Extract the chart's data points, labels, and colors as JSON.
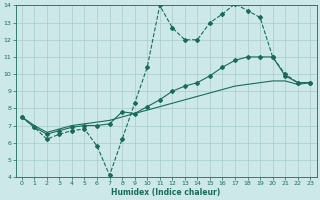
{
  "xlabel": "Humidex (Indice chaleur)",
  "bg_color": "#cce8e8",
  "grid_color": "#aacccc",
  "line_color": "#1a6b5a",
  "xlim": [
    -0.5,
    23.5
  ],
  "ylim": [
    4,
    14
  ],
  "xticks": [
    0,
    1,
    2,
    3,
    4,
    5,
    6,
    7,
    8,
    9,
    10,
    11,
    12,
    13,
    14,
    15,
    16,
    17,
    18,
    19,
    20,
    21,
    22,
    23
  ],
  "yticks": [
    4,
    5,
    6,
    7,
    8,
    9,
    10,
    11,
    12,
    13,
    14
  ],
  "line1_x": [
    0,
    1,
    2,
    3,
    4,
    5,
    6,
    7,
    8,
    9,
    10,
    11,
    12,
    13,
    14,
    15,
    16,
    17,
    18,
    19,
    20,
    21,
    22,
    23
  ],
  "line1_y": [
    7.5,
    6.9,
    6.2,
    6.5,
    6.7,
    6.8,
    5.8,
    4.1,
    6.2,
    8.3,
    10.4,
    14.0,
    12.7,
    12.0,
    12.0,
    13.0,
    13.5,
    14.1,
    13.7,
    13.3,
    11.0,
    10.0,
    9.5,
    9.5
  ],
  "line2_x": [
    0,
    1,
    2,
    3,
    4,
    5,
    6,
    7,
    8,
    9,
    10,
    11,
    12,
    13,
    14,
    15,
    16,
    17,
    18,
    19,
    20,
    21,
    22,
    23
  ],
  "line2_y": [
    7.5,
    6.9,
    6.5,
    6.7,
    6.9,
    7.0,
    7.0,
    7.1,
    7.8,
    7.7,
    8.1,
    8.5,
    9.0,
    9.3,
    9.5,
    9.9,
    10.4,
    10.8,
    11.0,
    11.0,
    11.0,
    9.9,
    9.5,
    9.5
  ],
  "line3_x": [
    0,
    1,
    2,
    3,
    4,
    5,
    6,
    7,
    8,
    9,
    10,
    11,
    12,
    13,
    14,
    15,
    16,
    17,
    18,
    19,
    20,
    21,
    22,
    23
  ],
  "line3_y": [
    7.5,
    7.0,
    6.6,
    6.8,
    7.0,
    7.1,
    7.2,
    7.3,
    7.5,
    7.7,
    7.9,
    8.1,
    8.3,
    8.5,
    8.7,
    8.9,
    9.1,
    9.3,
    9.4,
    9.5,
    9.6,
    9.6,
    9.4,
    9.5
  ]
}
